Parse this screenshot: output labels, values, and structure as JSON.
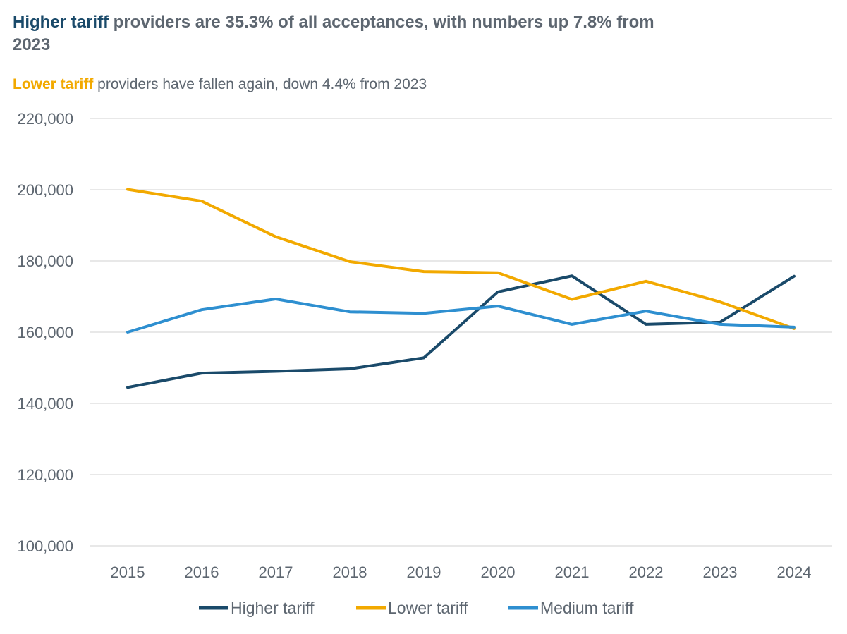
{
  "header": {
    "title_highlight": "Higher tariff",
    "title_rest": " providers are 35.3% of all acceptances, with numbers up 7.8% from 2023",
    "subtitle_highlight": "Lower tariff",
    "subtitle_rest": " providers have fallen again, down 4.4% from 2023"
  },
  "colors": {
    "higher": "#1a4a6a",
    "lower": "#f2a900",
    "medium": "#2e8fd0",
    "grid": "#d9d9d9",
    "text": "#5d6670"
  },
  "chart_data": {
    "type": "line",
    "title": "Higher tariff providers are 35.3% of all acceptances, with numbers up 7.8% from 2023",
    "subtitle": "Lower tariff providers have fallen again, down 4.4% from 2023",
    "xlabel": "",
    "ylabel": "",
    "x": [
      "2015",
      "2016",
      "2017",
      "2018",
      "2019",
      "2020",
      "2021",
      "2022",
      "2023",
      "2024"
    ],
    "ylim": [
      100000,
      220000
    ],
    "yticks": [
      100000,
      120000,
      140000,
      160000,
      180000,
      200000,
      220000
    ],
    "ytick_labels": [
      "100,000",
      "120,000",
      "140,000",
      "160,000",
      "180,000",
      "200,000",
      "220,000"
    ],
    "grid": true,
    "legend_position": "bottom",
    "series": [
      {
        "name": "Higher tariff",
        "key": "higher",
        "values": [
          144500,
          148500,
          149000,
          149700,
          152800,
          171300,
          175800,
          162200,
          162800,
          175700
        ]
      },
      {
        "name": "Lower tariff",
        "key": "lower",
        "values": [
          200100,
          196800,
          186800,
          179800,
          177000,
          176700,
          169200,
          174300,
          168500,
          161000
        ]
      },
      {
        "name": "Medium tariff",
        "key": "medium",
        "values": [
          160000,
          166300,
          169300,
          165700,
          165300,
          167300,
          162200,
          165900,
          162200,
          161400
        ]
      }
    ]
  }
}
